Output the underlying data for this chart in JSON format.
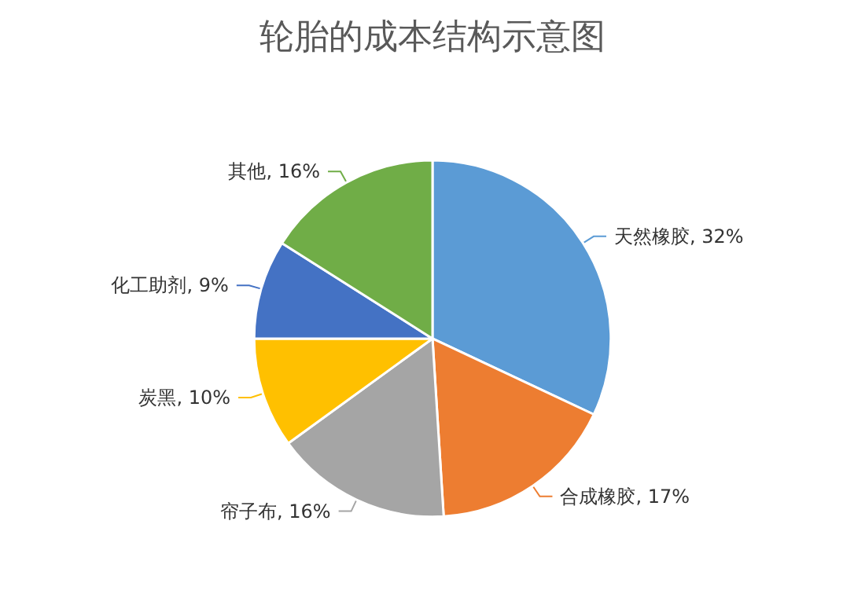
{
  "chart_data": {
    "type": "pie",
    "title": "轮胎的成本结构示意图",
    "categories": [
      "天然橡胶",
      "合成橡胶",
      "帘子布",
      "炭黑",
      "化工助剂",
      "其他"
    ],
    "values": [
      32,
      17,
      16,
      10,
      9,
      16
    ],
    "value_labels": [
      "32%",
      "17%",
      "16%",
      "10%",
      "9%",
      "16%"
    ],
    "colors": [
      "#5b9bd5",
      "#ed7d31",
      "#a5a5a5",
      "#ffc000",
      "#4472c4",
      "#70ad47"
    ],
    "legend": false
  }
}
